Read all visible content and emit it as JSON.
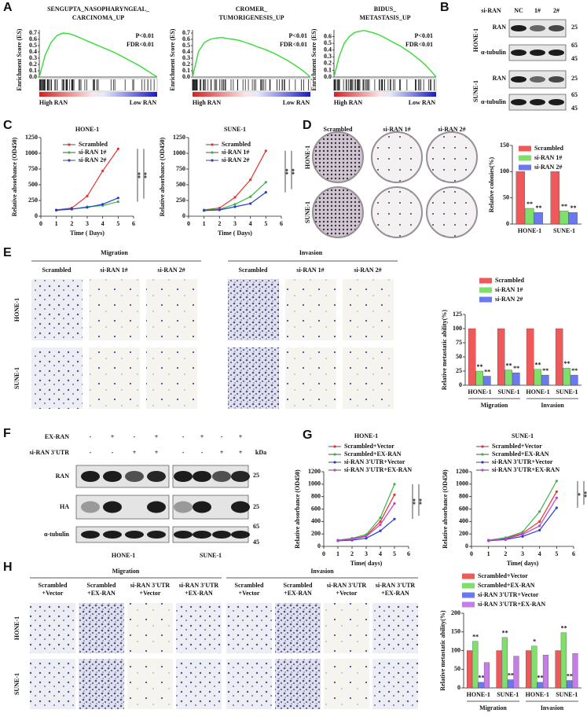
{
  "panel_labels": [
    "A",
    "B",
    "C",
    "D",
    "E",
    "F",
    "G",
    "H"
  ],
  "blots_B": {
    "header": "si-RAN",
    "lanes": [
      "NC",
      "1#",
      "2#"
    ],
    "cells": [
      {
        "name": "HONE-1",
        "proteins": [
          "RAN",
          "α-tubulin"
        ],
        "markers": [
          25,
          65,
          45
        ]
      },
      {
        "name": "SUNE-1",
        "proteins": [
          "RAN",
          "α-tubulin"
        ],
        "markers": [
          25,
          65,
          45
        ]
      }
    ]
  },
  "colony_images": {
    "columns": [
      "Scrambled",
      "si-RAN 1#",
      "si-RAN 2#"
    ],
    "rows": [
      "HONE-1",
      "SUNE-1"
    ]
  },
  "transwell_E": {
    "groups": [
      "Migration",
      "Invasion"
    ],
    "columns": [
      "Scrambled",
      "si-RAN 1#",
      "si-RAN 2#"
    ],
    "rows": [
      "HONE-1",
      "SUNE-1"
    ]
  },
  "blots_F": {
    "conditions": [
      {
        "name": "EX-RAN",
        "signs": [
          "-",
          "+",
          "-",
          "+"
        ]
      },
      {
        "name": "si-RAN 3'UTR",
        "signs": [
          "-",
          "-",
          "+",
          "+"
        ]
      }
    ],
    "kda_label": "kDa",
    "proteins": [
      "RAN",
      "HA",
      "α-tubulin"
    ],
    "cells": [
      "HONE-1",
      "SUNE-1"
    ],
    "markers": [
      25,
      25,
      65,
      45
    ]
  },
  "transwell_H": {
    "groups": [
      "Migration",
      "Invasion"
    ],
    "columns": [
      [
        "Scrambled",
        "+Vector"
      ],
      [
        "Scrambled",
        "+EX-RAN"
      ],
      [
        "si-RAN 3'UTR",
        "+Vector"
      ],
      [
        "si-RAN 3'UTR",
        "+EX-RAN"
      ]
    ],
    "rows": [
      "HONE-1",
      "SUNE-1"
    ]
  },
  "chart_data": [
    {
      "type": "gsea",
      "title_lines": [
        "SENGUPTA_NASOPHARYNGEAL_",
        "CARCINOMA_UP"
      ],
      "stats": [
        "P<0.01",
        "FDR<0.01"
      ],
      "xlabels": [
        "High RAN",
        "Low RAN"
      ],
      "ylabel": "Enrichment Score (ES)",
      "color": "#33dd33",
      "x": [
        0,
        1,
        2,
        3,
        4,
        5,
        6,
        7,
        8,
        9,
        10,
        11,
        12,
        13,
        14,
        15,
        16,
        17,
        18,
        19,
        20
      ],
      "values": [
        0,
        0.35,
        0.55,
        0.66,
        0.7,
        0.69,
        0.66,
        0.62,
        0.58,
        0.54,
        0.5,
        0.46,
        0.42,
        0.38,
        0.33,
        0.28,
        0.23,
        0.18,
        0.12,
        0.06,
        0
      ],
      "xlim": [
        0,
        20
      ],
      "ylim": [
        0,
        0.75
      ],
      "yticks": [
        {
          "value": 0,
          "label": "0.0"
        },
        0.1,
        0.2,
        0.3,
        0.4,
        0.5,
        0.6,
        0.7
      ]
    },
    {
      "type": "gsea",
      "title_lines": [
        "CROMER_",
        "TUMORIGENESIS_UP"
      ],
      "stats": [
        "P<0.01",
        "FDR<0.01"
      ],
      "xlabels": [
        "High RAN",
        "Low RAN"
      ],
      "ylabel": "Enrichment Score (ES)",
      "color": "#33dd33",
      "x": [
        0,
        1,
        2,
        3,
        4,
        5,
        6,
        7,
        8,
        9,
        10,
        11,
        12,
        13,
        14,
        15,
        16,
        17,
        18,
        19,
        20
      ],
      "values": [
        0,
        0.4,
        0.55,
        0.6,
        0.62,
        0.63,
        0.61,
        0.6,
        0.58,
        0.55,
        0.52,
        0.48,
        0.45,
        0.41,
        0.37,
        0.32,
        0.27,
        0.21,
        0.15,
        0.08,
        0
      ],
      "xlim": [
        0,
        20
      ],
      "ylim": [
        0,
        0.75
      ],
      "yticks": [
        {
          "value": 0,
          "label": "0.0"
        },
        0.1,
        0.2,
        0.3,
        0.4,
        0.5,
        0.6,
        0.7
      ]
    },
    {
      "type": "gsea",
      "title_lines": [
        "BIDUS_",
        "METASTASIS_UP"
      ],
      "stats": [
        "P<0.01",
        "FDR<0.01"
      ],
      "xlabels": [
        "High RAN",
        "Low RAN"
      ],
      "ylabel": "Enrichment Score (ES)",
      "color": "#33dd33",
      "x": [
        0,
        1,
        2,
        3,
        4,
        5,
        6,
        7,
        8,
        9,
        10,
        11,
        12,
        13,
        14,
        15,
        16,
        17,
        18,
        19,
        20
      ],
      "values": [
        0,
        0.3,
        0.5,
        0.6,
        0.66,
        0.68,
        0.69,
        0.67,
        0.65,
        0.62,
        0.58,
        0.54,
        0.5,
        0.46,
        0.41,
        0.36,
        0.3,
        0.24,
        0.17,
        0.09,
        0
      ],
      "xlim": [
        0,
        20
      ],
      "ylim": [
        0,
        0.7
      ],
      "yticks": [
        {
          "value": 0,
          "label": "0.0"
        },
        0.1,
        0.2,
        0.3,
        0.4,
        0.5,
        0.6
      ]
    },
    {
      "type": "line",
      "title": "HONE-1",
      "xlabel": "Time ( Days)",
      "ylabel": "Relative absorbance (OD450)",
      "x": [
        1,
        2,
        3,
        4,
        5
      ],
      "xlim": [
        0,
        6
      ],
      "xticks": [
        0,
        1,
        2,
        3,
        4,
        5,
        6
      ],
      "ylim": [
        0,
        1250
      ],
      "yticks": [
        0,
        250,
        500,
        750,
        1000,
        1250
      ],
      "significance": [
        "**",
        "**"
      ],
      "series": [
        {
          "name": "Scrambled",
          "color": "#e8332a",
          "values": [
            100,
            130,
            320,
            720,
            1070
          ]
        },
        {
          "name": "si-RAN 1#",
          "color": "#3cb44b",
          "values": [
            95,
            110,
            150,
            170,
            230
          ]
        },
        {
          "name": "si-RAN 2#",
          "color": "#1f3fd1",
          "values": [
            95,
            115,
            140,
            190,
            290
          ]
        }
      ]
    },
    {
      "type": "line",
      "title": "SUNE-1",
      "xlabel": "Time ( Days)",
      "ylabel": "Relative absorbance (OD450)",
      "x": [
        1,
        2,
        3,
        4,
        5
      ],
      "xlim": [
        0,
        6
      ],
      "xticks": [
        0,
        1,
        2,
        3,
        4,
        5,
        6
      ],
      "ylim": [
        0,
        1250
      ],
      "yticks": [
        0,
        250,
        500,
        750,
        1000,
        1250
      ],
      "significance": [
        "**",
        "**"
      ],
      "series": [
        {
          "name": "Scrambled",
          "color": "#e8332a",
          "values": [
            100,
            130,
            300,
            580,
            1040
          ]
        },
        {
          "name": "si-RAN 1#",
          "color": "#3cb44b",
          "values": [
            95,
            110,
            190,
            310,
            540
          ]
        },
        {
          "name": "si-RAN 2#",
          "color": "#1f3fd1",
          "values": [
            90,
            100,
            150,
            200,
            380
          ]
        }
      ]
    },
    {
      "type": "bar",
      "ylabel": "Relative colonies(%)",
      "categories": [
        "HONE-1",
        "SUNE-1"
      ],
      "ylim": [
        0,
        150
      ],
      "yticks": [
        0,
        50,
        100,
        150
      ],
      "series": [
        {
          "name": "Scrambled",
          "color": "#f0595a",
          "values": [
            100,
            100
          ]
        },
        {
          "name": "si-RAN 1#",
          "color": "#7ee06a",
          "values": [
            30,
            25
          ],
          "significance": [
            "**",
            "**"
          ]
        },
        {
          "name": "si-RAN 2#",
          "color": "#6b79f0",
          "values": [
            22,
            22
          ],
          "significance": [
            "**",
            "**"
          ]
        }
      ]
    },
    {
      "type": "bar",
      "ylabel": "Relative metastatic ability(%)",
      "categories": [
        "HONE-1",
        "SUNE-1",
        "HONE-1",
        "SUNE-1"
      ],
      "group_labels": [
        "Migration",
        "Invasion"
      ],
      "ylim": [
        0,
        125
      ],
      "yticks": [
        0,
        25,
        50,
        75,
        100,
        125
      ],
      "series": [
        {
          "name": "Scrambled",
          "color": "#f0595a",
          "values": [
            100,
            100,
            100,
            100
          ]
        },
        {
          "name": "si-RAN 1#",
          "color": "#7ee06a",
          "values": [
            25,
            27,
            28,
            30
          ],
          "significance": [
            "**",
            "**",
            "**",
            "**"
          ]
        },
        {
          "name": "si-RAN 2#",
          "color": "#6b79f0",
          "values": [
            16,
            22,
            18,
            18
          ],
          "significance": [
            "**",
            "**",
            "**",
            "**"
          ]
        }
      ]
    },
    {
      "type": "line",
      "title": "HONE-1",
      "xlabel": "Time( days)",
      "ylabel": "Relative absorbance (OD450)",
      "x": [
        1,
        2,
        3,
        4,
        5
      ],
      "xlim": [
        0,
        6
      ],
      "xticks": [
        0,
        1,
        2,
        3,
        4,
        5,
        6
      ],
      "ylim": [
        0,
        1200
      ],
      "yticks": [
        0,
        200,
        400,
        600,
        800,
        1000,
        1200
      ],
      "significance": [
        "**",
        "**"
      ],
      "series": [
        {
          "name": "Scrambled+Vector",
          "color": "#e8332a",
          "values": [
            100,
            120,
            170,
            400,
            830
          ]
        },
        {
          "name": "Scrambled+EX-RAN",
          "color": "#3cb44b",
          "values": [
            100,
            130,
            190,
            460,
            1000
          ]
        },
        {
          "name": "si-RAN 3'UTR+Vector",
          "color": "#1f3fd1",
          "values": [
            90,
            100,
            130,
            250,
            440
          ]
        },
        {
          "name": "si-RAN 3'UTR+EX-RAN",
          "color": "#c03fd6",
          "values": [
            95,
            115,
            160,
            350,
            690
          ]
        }
      ]
    },
    {
      "type": "line",
      "title": "SUNE-1",
      "xlabel": "Time( days)",
      "ylabel": "Relative absorbance (OD450)",
      "x": [
        1,
        2,
        3,
        4,
        5
      ],
      "xlim": [
        0,
        6
      ],
      "xticks": [
        0,
        1,
        2,
        3,
        4,
        5,
        6
      ],
      "ylim": [
        0,
        1200
      ],
      "yticks": [
        0,
        200,
        400,
        600,
        800,
        1000,
        1200
      ],
      "significance": [
        "*",
        "**"
      ],
      "series": [
        {
          "name": "Scrambled+Vector",
          "color": "#e8332a",
          "values": [
            100,
            130,
            210,
            400,
            880
          ]
        },
        {
          "name": "Scrambled+EX-RAN",
          "color": "#3cb44b",
          "values": [
            100,
            140,
            230,
            560,
            1050
          ]
        },
        {
          "name": "si-RAN 3'UTR+Vector",
          "color": "#1f3fd1",
          "values": [
            90,
            110,
            160,
            260,
            620
          ]
        },
        {
          "name": "si-RAN 3'UTR+EX-RAN",
          "color": "#c03fd6",
          "values": [
            95,
            120,
            190,
            330,
            780
          ]
        }
      ]
    },
    {
      "type": "bar",
      "ylabel": "Relative metastatic ability(%)",
      "categories": [
        "HONE-1",
        "SUNE-1",
        "HONE-1",
        "SUNE-1"
      ],
      "group_labels": [
        "Migration",
        "Invasion"
      ],
      "ylim": [
        0,
        200
      ],
      "yticks": [
        0,
        50,
        100,
        150,
        200
      ],
      "series": [
        {
          "name": "Scrambled+Vector",
          "color": "#f0595a",
          "values": [
            100,
            100,
            100,
            100
          ]
        },
        {
          "name": "Scrambled+EX-RAN",
          "color": "#7ee06a",
          "values": [
            125,
            135,
            112,
            148
          ],
          "significance": [
            "**",
            "**",
            "*",
            "**"
          ]
        },
        {
          "name": "si-RAN 3'UTR+Vector",
          "color": "#6b79f0",
          "values": [
            15,
            22,
            15,
            20
          ],
          "significance": [
            "**",
            "**",
            "**",
            "**"
          ]
        },
        {
          "name": "si-RAN 3'UTR+EX-RAN",
          "color": "#c67ee6",
          "values": [
            68,
            85,
            88,
            92
          ]
        }
      ]
    }
  ]
}
